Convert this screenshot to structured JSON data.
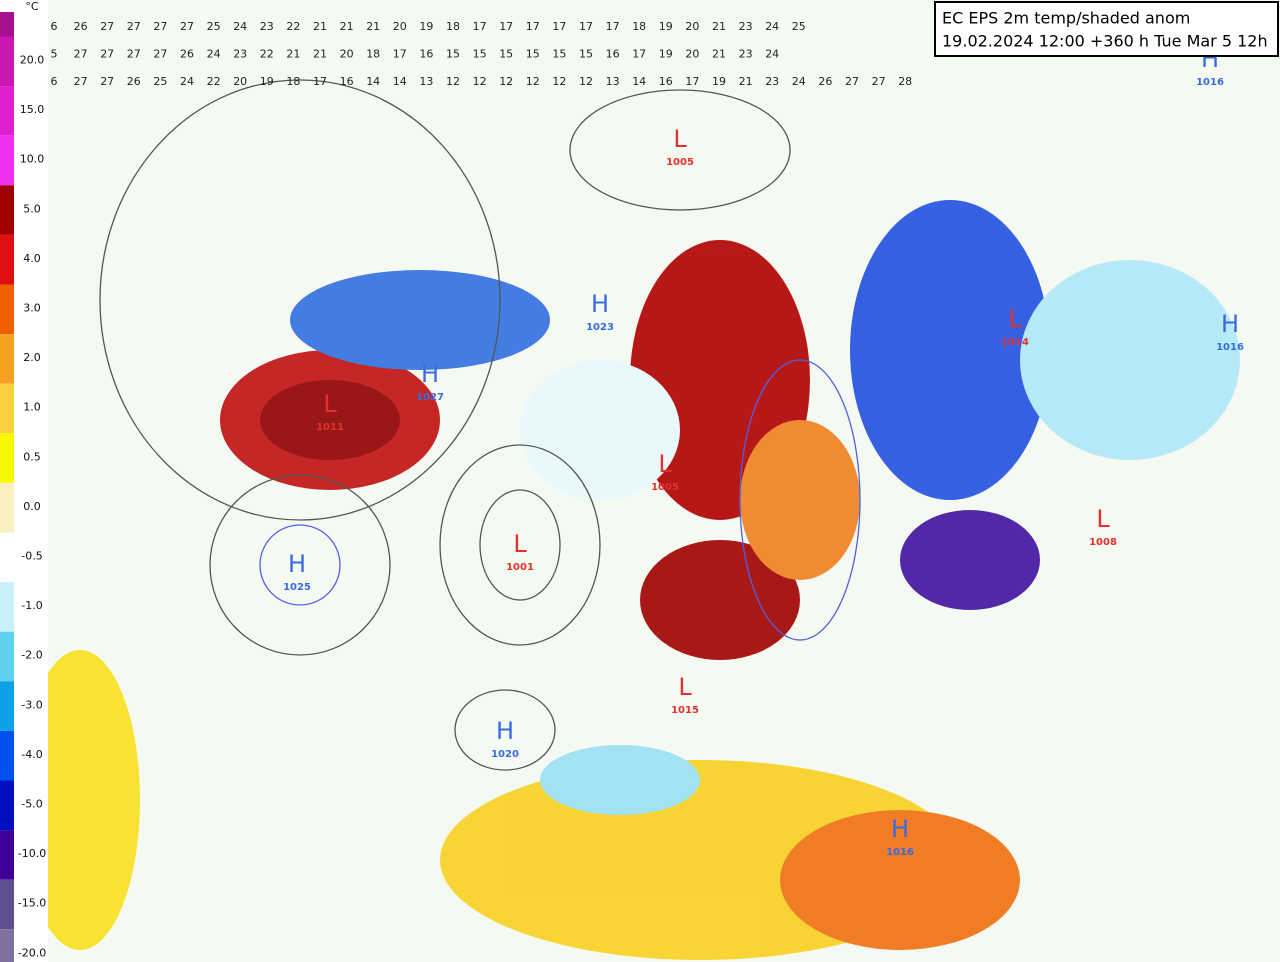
{
  "legend": {
    "unit": "°C",
    "labels": [
      "20.0",
      "15.0",
      "10.0",
      "5.0",
      "4.0",
      "3.0",
      "2.0",
      "1.0",
      "0.5",
      "0.0",
      "-0.5",
      "-1.0",
      "-2.0",
      "-3.0",
      "-4.0",
      "-5.0",
      "-10.0",
      "-15.0",
      "-20.0"
    ],
    "colors": [
      "#a8108f",
      "#c818b0",
      "#e020d0",
      "#f030f0",
      "#a00000",
      "#e01010",
      "#f06000",
      "#f8a020",
      "#f8d040",
      "#f8f800",
      "#f8f0c0",
      "#ffffff",
      "#c8f0f8",
      "#60d0f0",
      "#10a0e8",
      "#0050f0",
      "#0010c0",
      "#400098",
      "#605090",
      "#8070a0"
    ]
  },
  "title": {
    "line1": "EC EPS 2m temp/shaded anom",
    "line2": "19.02.2024 12:00 +360 h Tue Mar 5 12h"
  },
  "pressure_centers": [
    {
      "letter": "H",
      "value": "1025"
    },
    {
      "letter": "H",
      "value": "1020"
    },
    {
      "letter": "H",
      "value": "1027"
    },
    {
      "letter": "H",
      "value": "1023"
    },
    {
      "letter": "L",
      "value": "1005"
    },
    {
      "letter": "L",
      "value": "1001"
    },
    {
      "letter": "L",
      "value": "1005"
    },
    {
      "letter": "L",
      "value": "1011"
    },
    {
      "letter": "L",
      "value": "1015"
    },
    {
      "letter": "L",
      "value": "1008"
    },
    {
      "letter": "L",
      "value": "1014"
    },
    {
      "letter": "H",
      "value": "1016"
    },
    {
      "letter": "H",
      "value": "1016"
    },
    {
      "letter": "H",
      "value": "1016"
    }
  ],
  "temperature_rows": [
    [
      6,
      26,
      27,
      27,
      27,
      27,
      25,
      24,
      23,
      22,
      21,
      21,
      21,
      20,
      19,
      18,
      17,
      17,
      17,
      17,
      17,
      17,
      18,
      19,
      20,
      21,
      23,
      24,
      25
    ],
    [
      5,
      27,
      27,
      27,
      27,
      26,
      24,
      23,
      22,
      21,
      21,
      20,
      18,
      17,
      16,
      15,
      15,
      15,
      15,
      15,
      15,
      16,
      17,
      19,
      20,
      21,
      23,
      24
    ],
    [
      6,
      27,
      27,
      26,
      25,
      24,
      22,
      20,
      19,
      18,
      17,
      16,
      14,
      14,
      13,
      12,
      12,
      12,
      12,
      12,
      12,
      13,
      14,
      16,
      17,
      19,
      21,
      23,
      24,
      26,
      27,
      27,
      28
    ]
  ]
}
